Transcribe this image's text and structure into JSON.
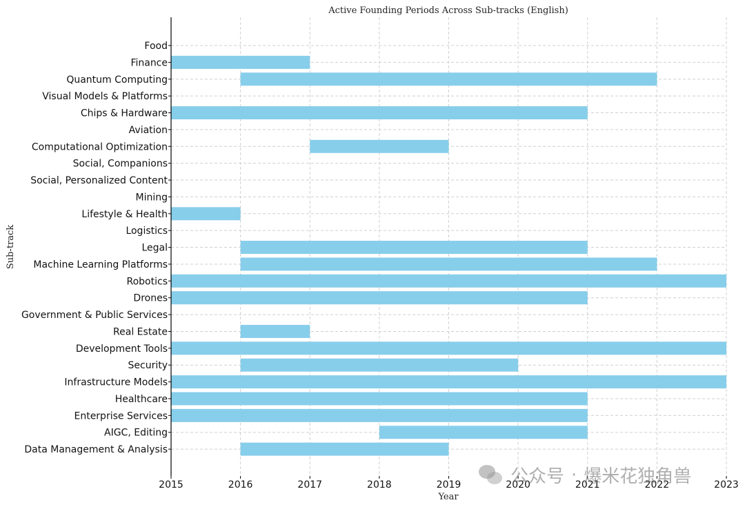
{
  "chart_data": {
    "type": "bar",
    "orientation": "horizontal",
    "title": "Active Founding Periods Across Sub-tracks (English)",
    "xlabel": "Year",
    "ylabel": "Sub-track",
    "xlim": [
      2015,
      2023
    ],
    "xticks": [
      "2015",
      "2016",
      "2017",
      "2018",
      "2019",
      "2020",
      "2021",
      "2022",
      "2023"
    ],
    "grid": true,
    "bar_color": "#87ceeb",
    "categories": [
      "Food",
      "Finance",
      "Quantum Computing",
      "Visual Models & Platforms",
      "Chips & Hardware",
      "Aviation",
      "Computational Optimization",
      "Social, Companions",
      "Social, Personalized Content",
      "Mining",
      "Lifestyle & Health",
      "Logistics",
      "Legal",
      "Machine Learning Platforms",
      "Robotics",
      "Drones",
      "Government & Public Services",
      "Real Estate",
      "Development Tools",
      "Security",
      "Infrastructure Models",
      "Healthcare",
      "Enterprise Services",
      "AIGC, Editing",
      "Data Management & Analysis"
    ],
    "periods": [
      null,
      [
        2015,
        2017
      ],
      [
        2016,
        2022
      ],
      null,
      [
        2015,
        2021
      ],
      null,
      [
        2017,
        2019
      ],
      null,
      null,
      null,
      [
        2015,
        2016
      ],
      null,
      [
        2016,
        2021
      ],
      [
        2016,
        2022
      ],
      [
        2015,
        2023
      ],
      [
        2015,
        2021
      ],
      null,
      [
        2016,
        2017
      ],
      [
        2015,
        2023
      ],
      [
        2016,
        2020
      ],
      [
        2015,
        2023
      ],
      [
        2015,
        2021
      ],
      [
        2015,
        2021
      ],
      [
        2018,
        2021
      ],
      [
        2016,
        2019
      ]
    ]
  },
  "watermark": {
    "icon": "wechat-icon",
    "left_text": "公众号",
    "right_text": "爆米花独角兽"
  }
}
